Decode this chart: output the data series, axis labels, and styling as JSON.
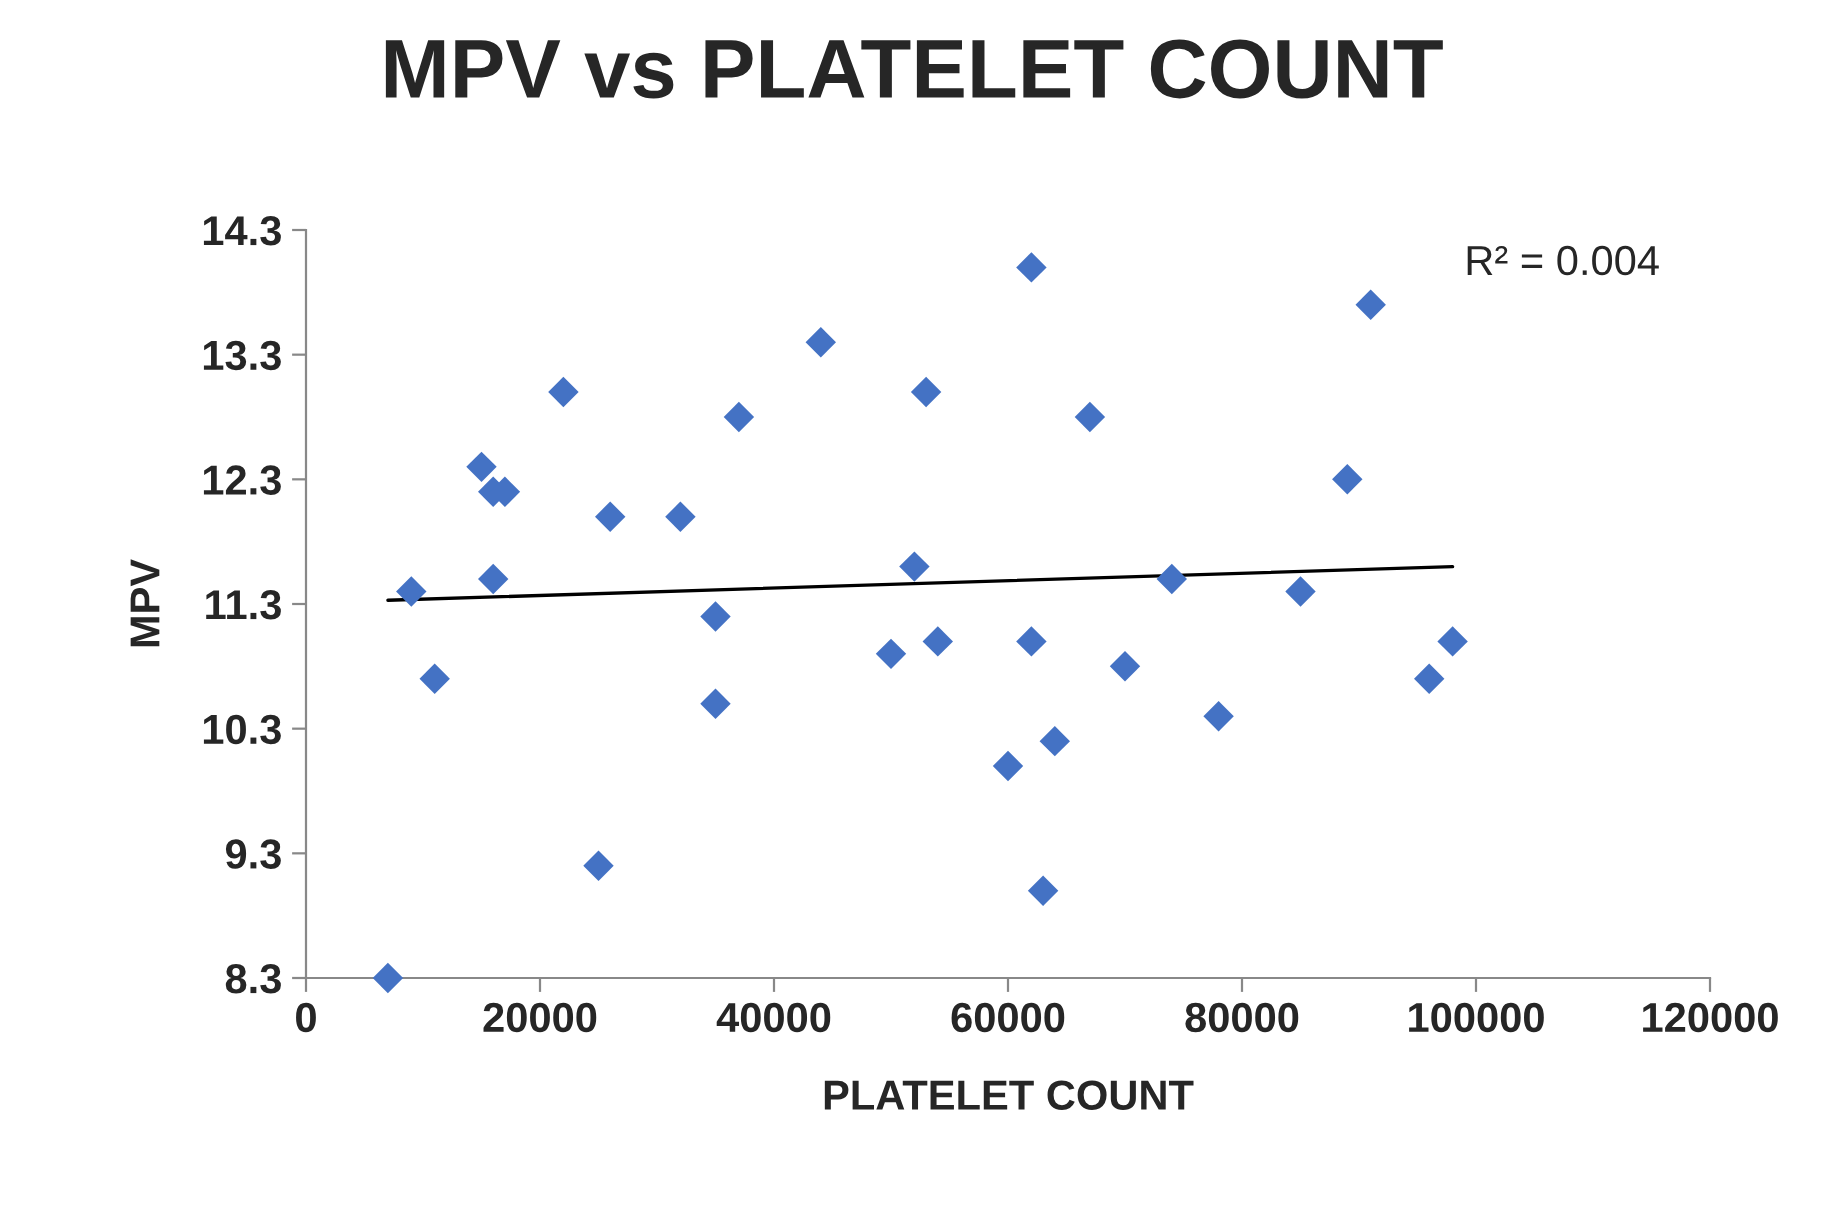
{
  "chart_data": {
    "type": "scatter",
    "title": "MPV vs PLATELET COUNT",
    "xlabel": "PLATELET COUNT",
    "ylabel": "MPV",
    "series": [
      {
        "color": "#4472c4",
        "marker": "diamond",
        "x": [
          7000,
          9000,
          11000,
          15000,
          16000,
          17000,
          16000,
          22000,
          26000,
          25000,
          32000,
          37000,
          35000,
          35000,
          44000,
          50000,
          53000,
          52000,
          54000,
          60000,
          62000,
          62000,
          63000,
          64000,
          67000,
          70000,
          74000,
          78000,
          85000,
          89000,
          91000,
          96000,
          98000
        ],
        "values": [
          8.3,
          11.4,
          10.7,
          12.4,
          12.2,
          12.2,
          11.5,
          13.0,
          12.0,
          9.2,
          12.0,
          12.8,
          11.2,
          10.5,
          13.4,
          10.9,
          13.0,
          11.6,
          11.0,
          10.0,
          14.0,
          11.0,
          9.0,
          10.2,
          12.8,
          10.8,
          11.5,
          10.4,
          11.4,
          12.3,
          13.7,
          10.7,
          11.0
        ]
      },
      {
        "type": "line",
        "color": "#000000",
        "marker": "none",
        "x": [
          7000,
          98000
        ],
        "values": [
          11.33,
          11.6
        ]
      }
    ],
    "annotations": [
      "R² = 0.004"
    ],
    "xlim": [
      0,
      120000
    ],
    "xticks": [
      0,
      20000,
      40000,
      60000,
      80000,
      100000,
      120000
    ],
    "ylim": [
      8.3,
      14.3
    ],
    "yticks": [
      8.3,
      9.3,
      10.3,
      11.3,
      12.3,
      13.3,
      14.3
    ],
    "grid": false,
    "legend": false
  }
}
